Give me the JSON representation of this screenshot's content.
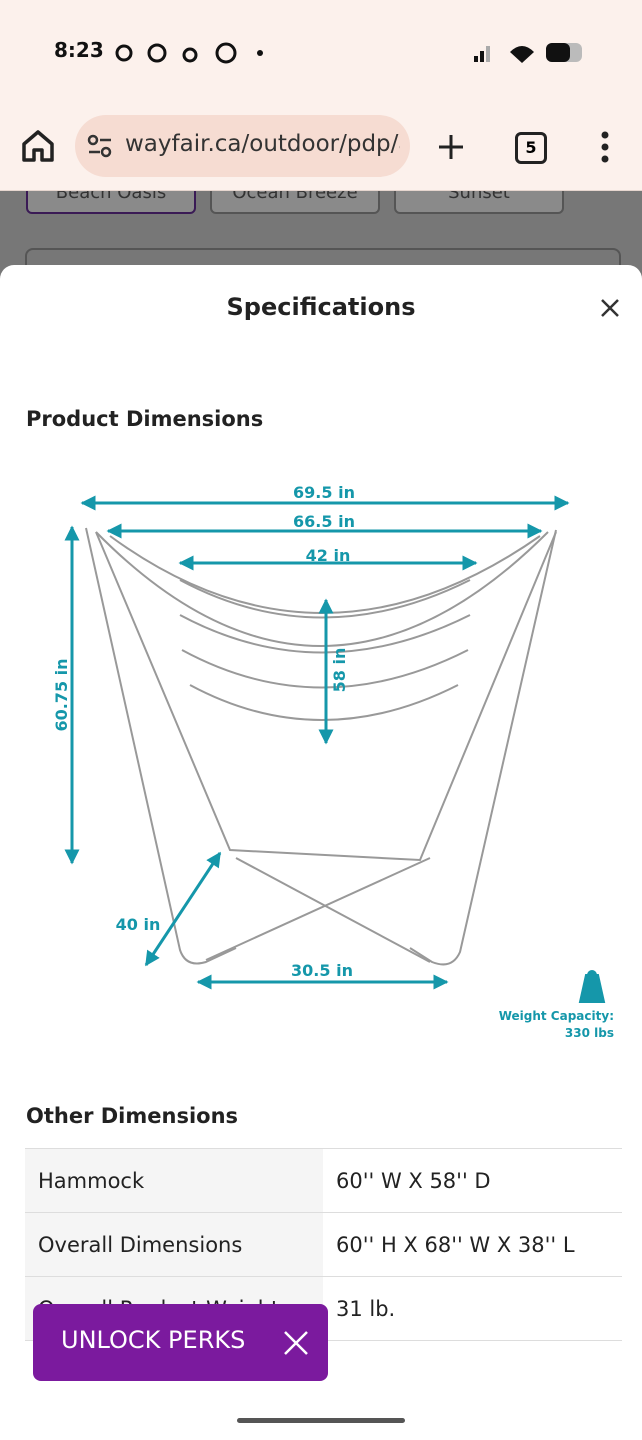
{
  "status_bar": {
    "time": "8:23"
  },
  "browser": {
    "url": "wayfair.ca/outdoor/pdp/a",
    "tab_count": "5"
  },
  "background_chips": [
    "Beach Oasis",
    "Ocean Breeze",
    "Sunset"
  ],
  "modal": {
    "title": "Specifications",
    "product_dimensions": {
      "heading": "Product Dimensions",
      "labels": {
        "overall_width": "69.5 in",
        "inner_width": "66.5 in",
        "seat_width": "42 in",
        "seat_depth": "58 in",
        "height": "60.75 in",
        "depth": "40 in",
        "base_width": "30.5 in"
      },
      "weight_capacity": {
        "label": "Weight Capacity:",
        "value": "330 lbs"
      }
    },
    "other_dimensions": {
      "heading": "Other Dimensions",
      "rows": [
        [
          "Hammock",
          "60'' W X 58'' D"
        ],
        [
          "Overall Dimensions",
          "60'' H X 68'' W X 38'' L"
        ],
        [
          "Overall Product Weight",
          "31 lb."
        ]
      ]
    }
  },
  "promo": {
    "button": "UNLOCK PERKS"
  }
}
